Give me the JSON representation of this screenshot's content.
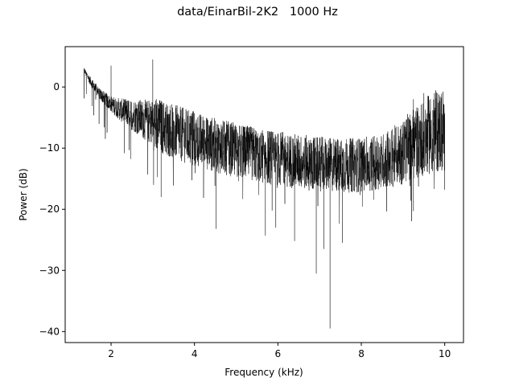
{
  "chart_data": {
    "type": "line",
    "title": "data/EinarBil-2K2   1000 Hz",
    "xlabel": "Frequency (kHz)",
    "ylabel": "Power (dB)",
    "xlim": [
      0.9,
      10.45
    ],
    "ylim": [
      -41.8,
      6.6
    ],
    "grid": false,
    "xticks": [
      2,
      4,
      6,
      8,
      10
    ],
    "yticks": [
      0,
      -10,
      -20,
      -30,
      -40
    ],
    "xtick_labels": [
      "2",
      "4",
      "6",
      "8",
      "10"
    ],
    "ytick_labels": [
      "0",
      "−10",
      "−20",
      "−30",
      "−40"
    ],
    "line_color": "#000000",
    "series": [
      {
        "x": [
          1.35,
          1.5,
          1.75,
          2.0,
          2.25,
          2.5,
          2.75,
          3.0,
          3.25,
          3.5,
          3.75,
          4.0,
          4.25,
          4.5,
          4.75,
          5.0,
          5.25,
          5.5,
          5.75,
          6.0,
          6.25,
          6.5,
          6.75,
          7.0,
          7.25,
          7.5,
          7.75,
          8.0,
          8.25,
          8.5,
          8.75,
          9.0,
          9.25,
          9.5,
          9.75,
          10.0
        ],
        "values": [
          2.8,
          1.0,
          -1.3,
          -2.8,
          -3.8,
          -4.5,
          -5.2,
          -5.9,
          -6.6,
          -7.3,
          -7.9,
          -8.5,
          -9.0,
          -9.5,
          -10.0,
          -10.4,
          -10.8,
          -11.1,
          -11.4,
          -11.7,
          -12.0,
          -12.2,
          -12.4,
          -12.6,
          -12.7,
          -12.8,
          -12.8,
          -12.7,
          -12.5,
          -12.1,
          -11.5,
          -10.5,
          -9.3,
          -8.2,
          -7.3,
          -7.0
        ]
      }
    ],
    "spikes": [
      {
        "x": 2.0,
        "top": 3.5,
        "bottom": -2.9
      },
      {
        "x": 3.0,
        "top": 4.5,
        "bottom": -6.0
      },
      {
        "x": 3.02,
        "top": -7.0,
        "bottom": -16.0
      },
      {
        "x": 3.2,
        "top": -8.0,
        "bottom": -18.0
      },
      {
        "x": 4.52,
        "top": -10.0,
        "bottom": -23.2
      },
      {
        "x": 5.7,
        "top": -11.0,
        "bottom": -24.3
      },
      {
        "x": 6.4,
        "top": -12.0,
        "bottom": -25.2
      },
      {
        "x": 6.92,
        "top": -12.5,
        "bottom": -30.5
      },
      {
        "x": 7.25,
        "top": -12.5,
        "bottom": -39.5
      },
      {
        "x": 7.55,
        "top": -12.5,
        "bottom": -25.5
      },
      {
        "x": 7.1,
        "top": -12.5,
        "bottom": -26.5
      },
      {
        "x": 5.95,
        "top": -11.0,
        "bottom": -23.0
      },
      {
        "x": 9.25,
        "top": -2.0,
        "bottom": -20.3
      },
      {
        "x": 9.5,
        "top": -1.0,
        "bottom": -12.0
      },
      {
        "x": 10.0,
        "top": -4.5,
        "bottom": -16.8
      }
    ]
  }
}
